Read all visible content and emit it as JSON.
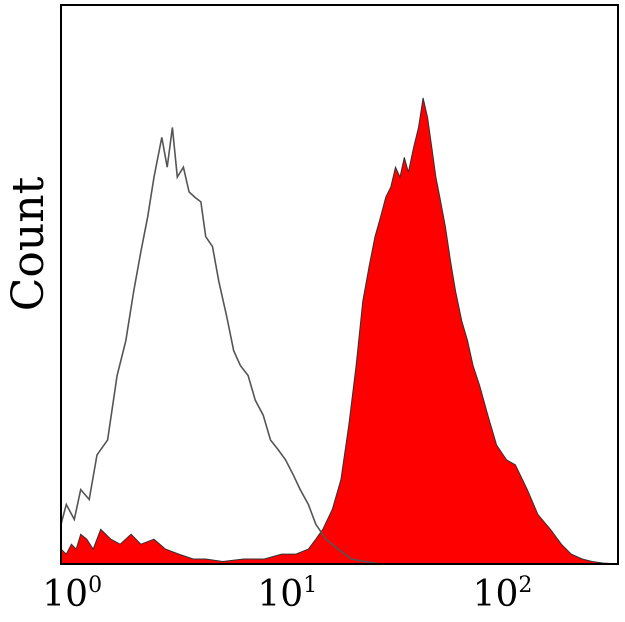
{
  "chart_data": {
    "type": "area",
    "title": "",
    "xlabel": "",
    "ylabel": "Count",
    "x_scale": "log10",
    "xlim": [
      0.85,
      330
    ],
    "ylim": [
      0,
      100
    ],
    "grid": false,
    "legend": "none",
    "x_ticks": [
      {
        "value": 1,
        "base": "10",
        "exp": "0"
      },
      {
        "value": 10,
        "base": "10",
        "exp": "1"
      },
      {
        "value": 100,
        "base": "10",
        "exp": "2"
      }
    ],
    "series": [
      {
        "style": "outline",
        "color": "#555555",
        "x": [
          0.85,
          0.9,
          0.98,
          1.05,
          1.15,
          1.25,
          1.4,
          1.55,
          1.7,
          1.85,
          2.0,
          2.15,
          2.3,
          2.5,
          2.65,
          2.8,
          2.95,
          3.15,
          3.35,
          3.55,
          3.8,
          4.0,
          4.3,
          4.6,
          5.0,
          5.4,
          5.8,
          6.3,
          6.8,
          7.4,
          8.0,
          8.7,
          9.4,
          10.2,
          11.0,
          12.0,
          13.0,
          14.5,
          16.5,
          19.0,
          22.0,
          26.0
        ],
        "y": [
          8,
          12,
          9,
          15,
          13,
          22,
          25,
          38,
          45,
          55,
          63,
          70,
          78,
          86,
          80,
          88,
          78,
          80,
          75,
          74,
          73,
          66,
          64,
          57,
          50,
          43,
          40,
          38,
          33,
          30,
          25,
          23,
          21,
          18,
          15,
          12,
          8,
          5,
          3,
          1,
          0.5,
          0
        ]
      },
      {
        "style": "filled",
        "color": "#ff0000",
        "x": [
          0.85,
          0.9,
          0.95,
          1.0,
          1.05,
          1.12,
          1.2,
          1.3,
          1.45,
          1.6,
          1.8,
          2.0,
          2.3,
          2.6,
          3.0,
          3.5,
          4.0,
          4.8,
          6.0,
          7.5,
          9.0,
          10.5,
          12.0,
          13.0,
          14.0,
          15.5,
          17.0,
          18.5,
          20.0,
          21.5,
          23.0,
          24.5,
          26.0,
          27.5,
          29.0,
          30.5,
          32.0,
          33.5,
          35.0,
          37.0,
          39.0,
          41.0,
          43.0,
          45.0,
          47.0,
          49.0,
          52.0,
          55.0,
          58.0,
          62.0,
          66.0,
          70.0,
          75.0,
          82.0,
          90.0,
          100.0,
          110.0,
          125.0,
          140.0,
          160.0,
          180.0,
          200.0,
          225.0,
          250.0,
          280.0,
          330.0
        ],
        "y": [
          3,
          2,
          4,
          3,
          6,
          5,
          3,
          7,
          5,
          4,
          6,
          4,
          5,
          3,
          2,
          1,
          1,
          0.5,
          1,
          1,
          2,
          2,
          3,
          5,
          7,
          11,
          17,
          28,
          40,
          53,
          60,
          66,
          70,
          74,
          76,
          80,
          78,
          82,
          79,
          84,
          88,
          94,
          90,
          84,
          78,
          74,
          68,
          61,
          55,
          49,
          45,
          40,
          36,
          30,
          24,
          21,
          20,
          15,
          10,
          7,
          4,
          2,
          1,
          0.5,
          0.2,
          0
        ]
      }
    ]
  }
}
